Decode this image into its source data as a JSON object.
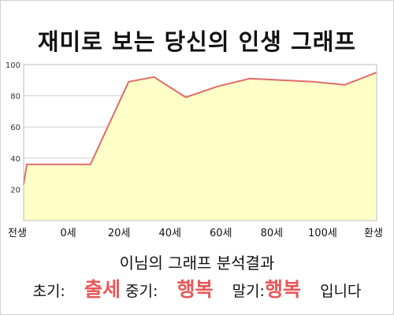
{
  "title": "재미로 보는 당신의 인생 그래프",
  "chart_data": {
    "type": "area",
    "x_labels": [
      "전생",
      "0세",
      "20세",
      "40세",
      "60세",
      "80세",
      "100세",
      "환생"
    ],
    "x": [
      -1,
      0,
      20,
      32,
      40,
      50,
      60,
      70,
      80,
      90,
      100,
      110
    ],
    "values": [
      23,
      36,
      36,
      89,
      92,
      79,
      86,
      91,
      90,
      89,
      87,
      95
    ],
    "yticks": [
      20,
      40,
      60,
      80,
      100
    ],
    "ylim": [
      0,
      100
    ],
    "grid": true,
    "colors": {
      "line": "#e06a6a",
      "fill": "#ffffc8",
      "grid": "#cfcfcf"
    }
  },
  "result": {
    "title": "이님의 그래프 분석결과",
    "early_label": "초기:",
    "early_value": "출세",
    "mid_label": "중기:",
    "mid_value": "행복",
    "late_label": "말기:",
    "late_value": "행복",
    "ending": "입니다"
  }
}
